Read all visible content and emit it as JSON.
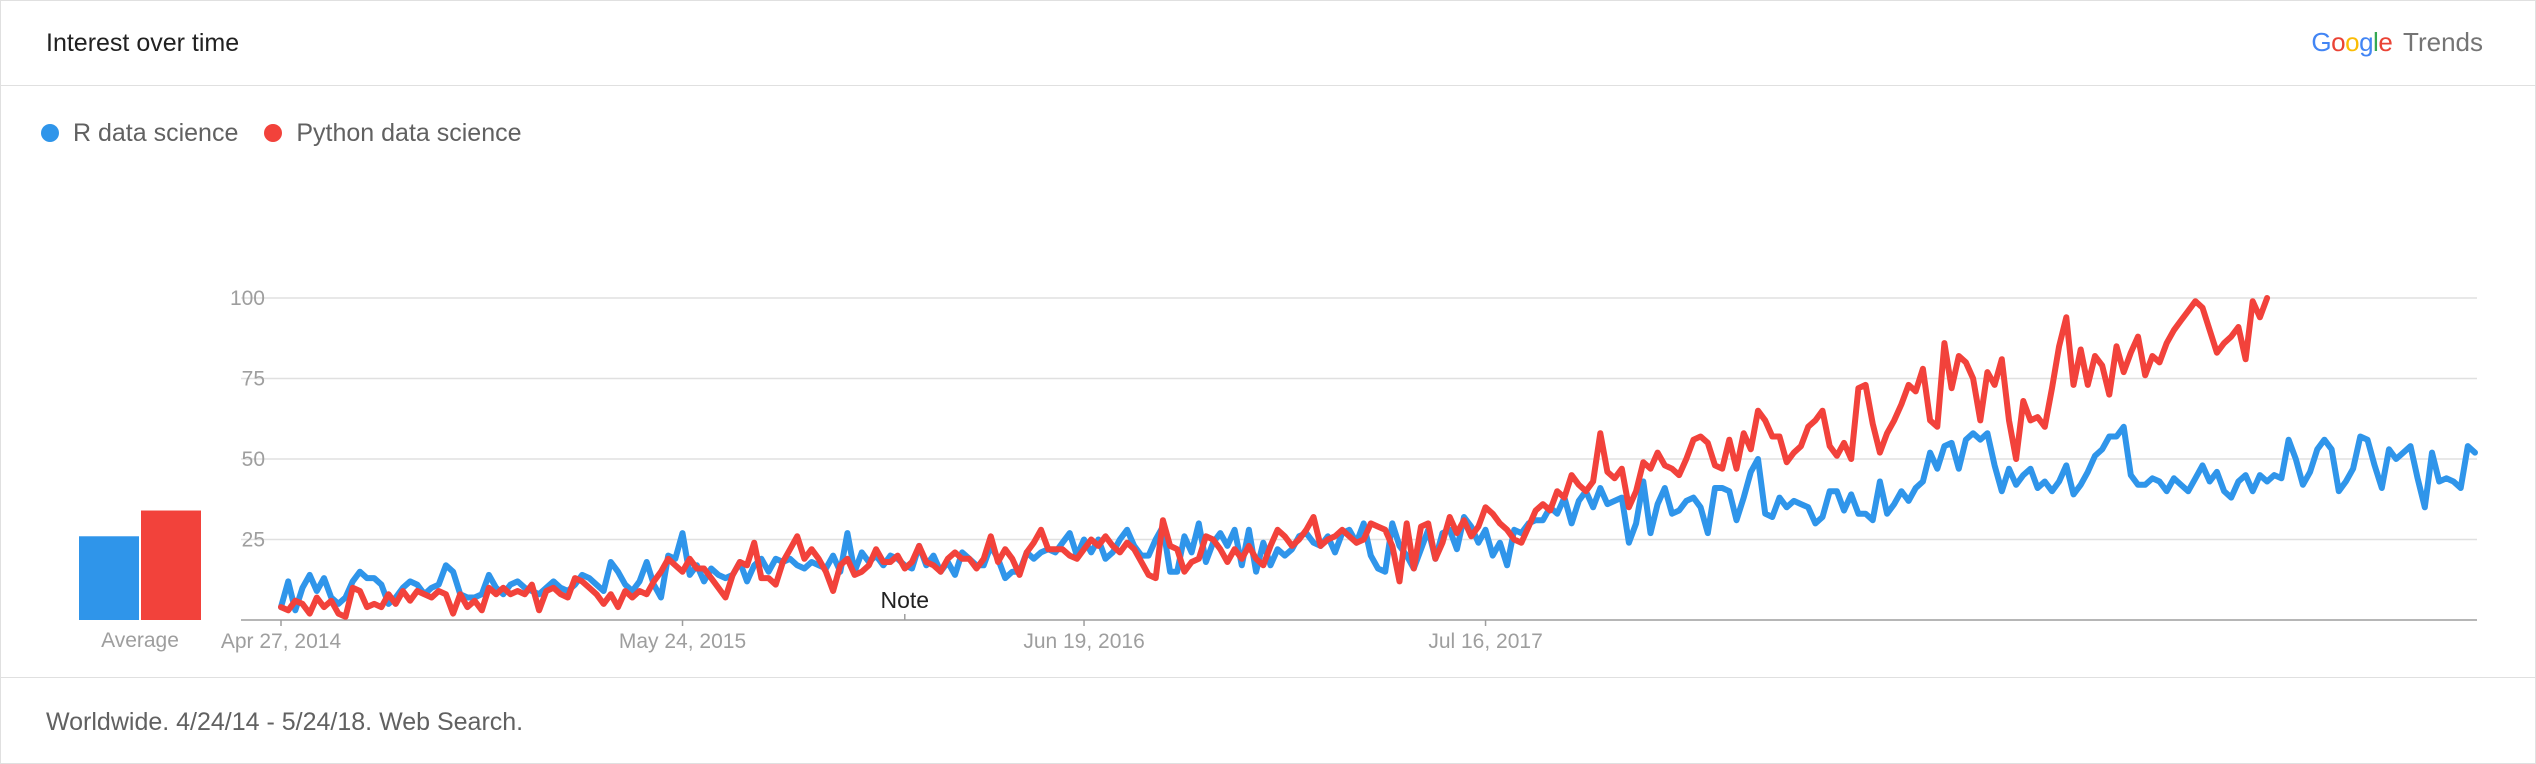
{
  "header": {
    "title": "Interest over time",
    "brand_google": "Google",
    "brand_trends": "Trends"
  },
  "footer": {
    "text": "Worldwide. 4/24/14 - 5/24/18. Web Search."
  },
  "colors": {
    "r_series": "#2f95ea",
    "python_series": "#f2423b",
    "grid": "#e0e0e0",
    "axis": "#9e9e9e"
  },
  "chart_data": {
    "type": "line",
    "ylim": [
      0,
      100
    ],
    "yticks": [
      "25",
      "50",
      "75",
      "100"
    ],
    "ytick_values": [
      25,
      50,
      75,
      100
    ],
    "xlabels": [
      "Apr 27, 2014",
      "May 24, 2015",
      "Jun 19, 2016",
      "Jul 16, 2017"
    ],
    "xlabel_indices": [
      0,
      56,
      112,
      168
    ],
    "note_label": "Note",
    "note_index": 87,
    "average_label": "Average",
    "averages": [
      26,
      34
    ],
    "series": [
      {
        "name": "R data science",
        "values": [
          4,
          12,
          3,
          10,
          14,
          9,
          13,
          7,
          5,
          7,
          12,
          15,
          13,
          13,
          11,
          5,
          7,
          10,
          12,
          11,
          8,
          10,
          11,
          17,
          15,
          8,
          7,
          7,
          8,
          14,
          10,
          8,
          11,
          12,
          10,
          9,
          8,
          10,
          12,
          10,
          9,
          11,
          14,
          13,
          11,
          9,
          18,
          15,
          11,
          9,
          12,
          18,
          11,
          7,
          20,
          19,
          27,
          14,
          17,
          12,
          16,
          14,
          13,
          14,
          18,
          12,
          17,
          19,
          15,
          19,
          18,
          19,
          17,
          16,
          18,
          17,
          16,
          20,
          15,
          27,
          15,
          21,
          18,
          20,
          17,
          20,
          19,
          17,
          16,
          23,
          17,
          20,
          15,
          18,
          14,
          21,
          19,
          17,
          17,
          23,
          19,
          13,
          15,
          15,
          21,
          19,
          21,
          22,
          21,
          24,
          27,
          20,
          25,
          21,
          25,
          19,
          21,
          25,
          28,
          23,
          20,
          20,
          25,
          29,
          15,
          15,
          26,
          21,
          30,
          18,
          24,
          27,
          23,
          28,
          17,
          28,
          15,
          24,
          17,
          22,
          20,
          22,
          26,
          27,
          24,
          23,
          26,
          21,
          27,
          28,
          24,
          30,
          20,
          16,
          15,
          30,
          23,
          20,
          16,
          22,
          28,
          19,
          27,
          28,
          22,
          32,
          29,
          24,
          28,
          20,
          24,
          17,
          28,
          27,
          30,
          31,
          31,
          35,
          33,
          38,
          30,
          37,
          40,
          35,
          41,
          36,
          37,
          38,
          24,
          30,
          43,
          27,
          36,
          41,
          33,
          34,
          37,
          38,
          35,
          27,
          41,
          41,
          40,
          31,
          38,
          46,
          50,
          33,
          32,
          38,
          35,
          37,
          36,
          35,
          30,
          32,
          40,
          40,
          34,
          39,
          33,
          33,
          31,
          43,
          33,
          36,
          40,
          37,
          41,
          43,
          52,
          47,
          54,
          55,
          47,
          56,
          58,
          56,
          58,
          48,
          40,
          47,
          42,
          45,
          47,
          41,
          43,
          40,
          43,
          48,
          39,
          42,
          46,
          51,
          53,
          57,
          57,
          60,
          45,
          42,
          42,
          44,
          43,
          40,
          44,
          42,
          40,
          44,
          48,
          43,
          46,
          40,
          38,
          43,
          45,
          40,
          45,
          43,
          45,
          44,
          56,
          50,
          42,
          46,
          53,
          56,
          53,
          40,
          43,
          47,
          57,
          56,
          48,
          41,
          53,
          50,
          52,
          54,
          44,
          35,
          52,
          43,
          44,
          43,
          41,
          54,
          52
        ]
      },
      {
        "name": "Python data science",
        "values": [
          4,
          3,
          6,
          5,
          2,
          7,
          4,
          6,
          2,
          1,
          10,
          9,
          4,
          5,
          4,
          8,
          5,
          9,
          6,
          9,
          8,
          7,
          9,
          8,
          2,
          8,
          4,
          6,
          3,
          10,
          8,
          10,
          8,
          9,
          8,
          11,
          3,
          9,
          10,
          8,
          7,
          13,
          12,
          10,
          8,
          5,
          8,
          4,
          9,
          7,
          9,
          8,
          12,
          15,
          19,
          17,
          15,
          19,
          16,
          16,
          13,
          10,
          7,
          14,
          18,
          17,
          24,
          13,
          13,
          11,
          18,
          22,
          26,
          19,
          22,
          19,
          15,
          9,
          17,
          19,
          14,
          15,
          17,
          22,
          18,
          18,
          20,
          16,
          18,
          23,
          18,
          17,
          15,
          19,
          21,
          19,
          19,
          16,
          19,
          26,
          18,
          22,
          19,
          14,
          21,
          24,
          28,
          22,
          22,
          22,
          20,
          19,
          22,
          25,
          23,
          26,
          23,
          21,
          24,
          22,
          18,
          14,
          13,
          31,
          23,
          22,
          15,
          18,
          19,
          26,
          25,
          22,
          18,
          22,
          19,
          23,
          19,
          17,
          23,
          28,
          26,
          23,
          25,
          28,
          32,
          23,
          25,
          26,
          28,
          26,
          24,
          25,
          30,
          29,
          28,
          23,
          12,
          30,
          16,
          29,
          30,
          19,
          24,
          32,
          27,
          31,
          26,
          29,
          35,
          33,
          30,
          28,
          25,
          24,
          29,
          34,
          36,
          34,
          40,
          38,
          45,
          42,
          40,
          43,
          58,
          46,
          44,
          47,
          35,
          40,
          49,
          47,
          52,
          48,
          47,
          45,
          50,
          56,
          57,
          55,
          48,
          47,
          56,
          47,
          58,
          53,
          65,
          62,
          57,
          57,
          49,
          52,
          54,
          60,
          62,
          65,
          54,
          51,
          55,
          50,
          72,
          73,
          61,
          52,
          58,
          62,
          67,
          73,
          71,
          78,
          62,
          60,
          86,
          72,
          82,
          80,
          75,
          62,
          77,
          73,
          81,
          62,
          50,
          68,
          62,
          63,
          60,
          72,
          85,
          94,
          73,
          84,
          73,
          82,
          79,
          70,
          85,
          77,
          83,
          88,
          76,
          82,
          80,
          86,
          90,
          93,
          96,
          99,
          97,
          90,
          83,
          86,
          88,
          91,
          81,
          99,
          94,
          100
        ]
      }
    ]
  }
}
